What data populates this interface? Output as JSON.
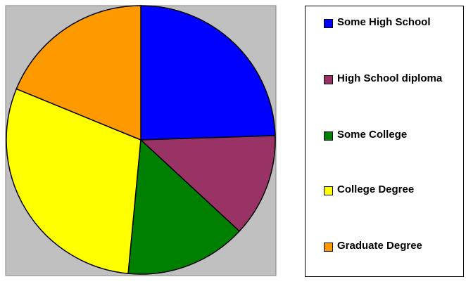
{
  "chart_data": {
    "type": "pie",
    "categories": [
      "Some High School",
      "High School diploma",
      "Some College",
      "College Degree",
      "Graduate Degree"
    ],
    "values": [
      24.5,
      12.4,
      14.6,
      29.7,
      18.8
    ],
    "colors": [
      "#0000ff",
      "#993366",
      "#008000",
      "#ffff00",
      "#ff9900"
    ],
    "legend": "right"
  }
}
